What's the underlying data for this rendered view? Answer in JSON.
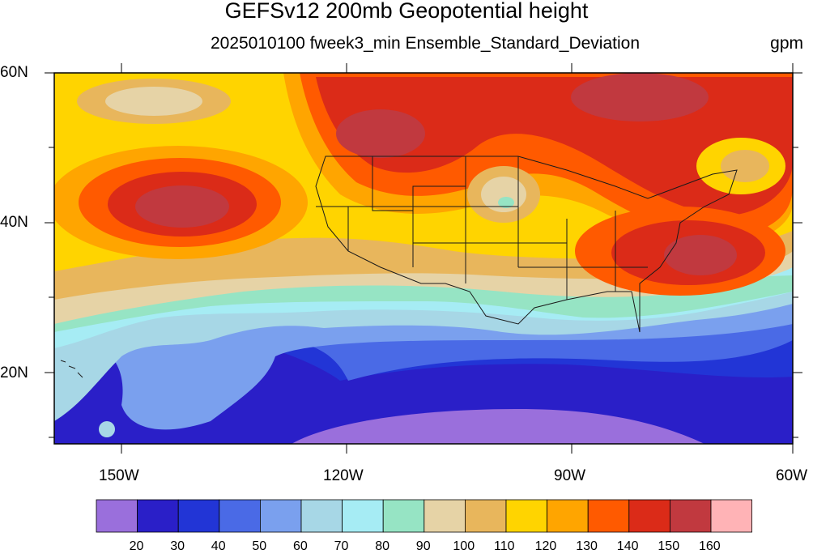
{
  "title": "GEFSv12 200mb Geopotential height",
  "subtitle": "2025010100 fweek3_min Ensemble_Standard_Deviation",
  "units": "gpm",
  "map": {
    "lat_labels": [
      "60N",
      "40N",
      "20N"
    ],
    "lon_labels": [
      "150W",
      "120W",
      "90W",
      "60W"
    ],
    "extent": {
      "lon_min": -159,
      "lon_max": -60,
      "lat_min": 10,
      "lat_max": 60
    }
  },
  "colorbar": {
    "levels": [
      "20",
      "30",
      "40",
      "50",
      "60",
      "70",
      "80",
      "90",
      "100",
      "110",
      "120",
      "130",
      "140",
      "150",
      "160"
    ],
    "colors": [
      "#9a6fdc",
      "#2a1fc8",
      "#2235d6",
      "#4a6ae6",
      "#7aa0ee",
      "#a7d7e6",
      "#a6ecf4",
      "#96e4c4",
      "#e6d3a6",
      "#e8b65c",
      "#ffd400",
      "#ffa500",
      "#ff5a00",
      "#db2b18",
      "#c1393f",
      "#ffb3b6"
    ]
  }
}
